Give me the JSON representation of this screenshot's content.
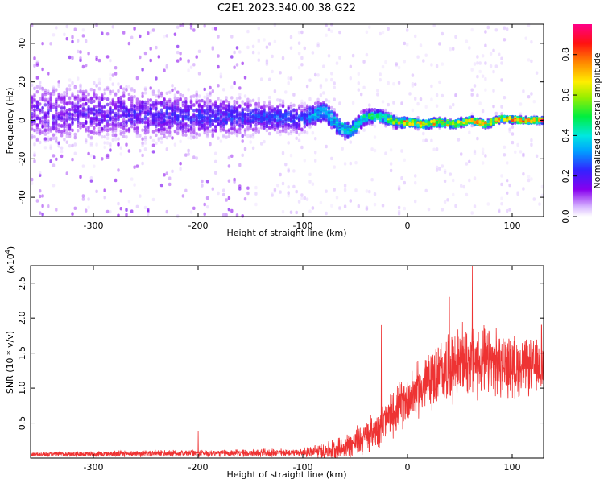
{
  "figure": {
    "title": "C2E1.2023.340.00.38.G22"
  },
  "chart_data": [
    {
      "type": "heatmap",
      "xlabel": "Height of straight line (km)",
      "ylabel": "Frequency (Hz)",
      "xlim": [
        -360,
        130
      ],
      "ylim": [
        -50,
        50
      ],
      "xticks": [
        -300,
        -200,
        -100,
        0,
        100
      ],
      "yticks": [
        -40,
        -20,
        0,
        20,
        40
      ],
      "colorbar": {
        "label": "Normalized spectral amplitude",
        "range": [
          0,
          0.95
        ],
        "ticks": [
          0.0,
          0.2,
          0.4,
          0.6,
          0.8
        ],
        "colormap": "rainbow (white-purple-blue-cyan-green-yellow-red-magenta)"
      },
      "ridge_frequency_hz": [
        {
          "x": -330,
          "y": 3
        },
        {
          "x": -300,
          "y": 4
        },
        {
          "x": -250,
          "y": 3
        },
        {
          "x": -200,
          "y": 2
        },
        {
          "x": -150,
          "y": 2
        },
        {
          "x": -100,
          "y": 1
        },
        {
          "x": -80,
          "y": 5
        },
        {
          "x": -65,
          "y": -3
        },
        {
          "x": -55,
          "y": -6
        },
        {
          "x": -40,
          "y": 2
        },
        {
          "x": -25,
          "y": 2
        },
        {
          "x": -10,
          "y": -1
        },
        {
          "x": 0,
          "y": -1
        },
        {
          "x": 15,
          "y": -2
        },
        {
          "x": 30,
          "y": -1
        },
        {
          "x": 45,
          "y": -2
        },
        {
          "x": 60,
          "y": 0
        },
        {
          "x": 75,
          "y": -2
        },
        {
          "x": 90,
          "y": 1
        },
        {
          "x": 110,
          "y": 0
        },
        {
          "x": 130,
          "y": 0
        }
      ],
      "ridge_peak_amplitude": [
        {
          "x": -330,
          "y": 0.2
        },
        {
          "x": -100,
          "y": 0.3
        },
        {
          "x": -80,
          "y": 0.45
        },
        {
          "x": -50,
          "y": 0.5
        },
        {
          "x": -20,
          "y": 0.6
        },
        {
          "x": 0,
          "y": 0.8
        },
        {
          "x": 50,
          "y": 0.8
        },
        {
          "x": 100,
          "y": 0.9
        },
        {
          "x": 130,
          "y": 0.9
        }
      ],
      "ridge_spread_hz": [
        {
          "x": -330,
          "y": 20
        },
        {
          "x": -200,
          "y": 14
        },
        {
          "x": -100,
          "y": 9
        },
        {
          "x": -60,
          "y": 6
        },
        {
          "x": 0,
          "y": 3
        },
        {
          "x": 130,
          "y": 2
        }
      ]
    },
    {
      "type": "line",
      "xlabel": "Height of straight line (km)",
      "ylabel": "SNR (10 * v/v)",
      "yunit": "(x10",
      "yunit_exp": "4",
      "xlim": [
        -360,
        130
      ],
      "ylim": [
        0,
        2.75
      ],
      "xticks": [
        -300,
        -200,
        -100,
        0,
        100
      ],
      "yticks": [
        0.5,
        1.0,
        1.5,
        2.0,
        2.5
      ],
      "series": [
        {
          "color": "#ee3333",
          "envelope_mean": [
            {
              "x": -360,
              "y": 0.05
            },
            {
              "x": -300,
              "y": 0.06
            },
            {
              "x": -200,
              "y": 0.07
            },
            {
              "x": -150,
              "y": 0.07
            },
            {
              "x": -100,
              "y": 0.08
            },
            {
              "x": -80,
              "y": 0.1
            },
            {
              "x": -60,
              "y": 0.15
            },
            {
              "x": -40,
              "y": 0.3
            },
            {
              "x": -20,
              "y": 0.55
            },
            {
              "x": 0,
              "y": 0.85
            },
            {
              "x": 20,
              "y": 1.1
            },
            {
              "x": 40,
              "y": 1.3
            },
            {
              "x": 60,
              "y": 1.38
            },
            {
              "x": 80,
              "y": 1.35
            },
            {
              "x": 100,
              "y": 1.3
            },
            {
              "x": 130,
              "y": 1.3
            }
          ],
          "envelope_amplitude": [
            {
              "x": -360,
              "y": 0.03
            },
            {
              "x": -100,
              "y": 0.05
            },
            {
              "x": -40,
              "y": 0.2
            },
            {
              "x": 0,
              "y": 0.3
            },
            {
              "x": 60,
              "y": 0.45
            },
            {
              "x": 130,
              "y": 0.3
            }
          ],
          "peaks": [
            {
              "x": -200,
              "y": 0.38
            },
            {
              "x": -25,
              "y": 1.9
            },
            {
              "x": 40,
              "y": 2.3
            },
            {
              "x": 62,
              "y": 2.75
            },
            {
              "x": 128,
              "y": 1.9
            }
          ]
        }
      ]
    }
  ]
}
